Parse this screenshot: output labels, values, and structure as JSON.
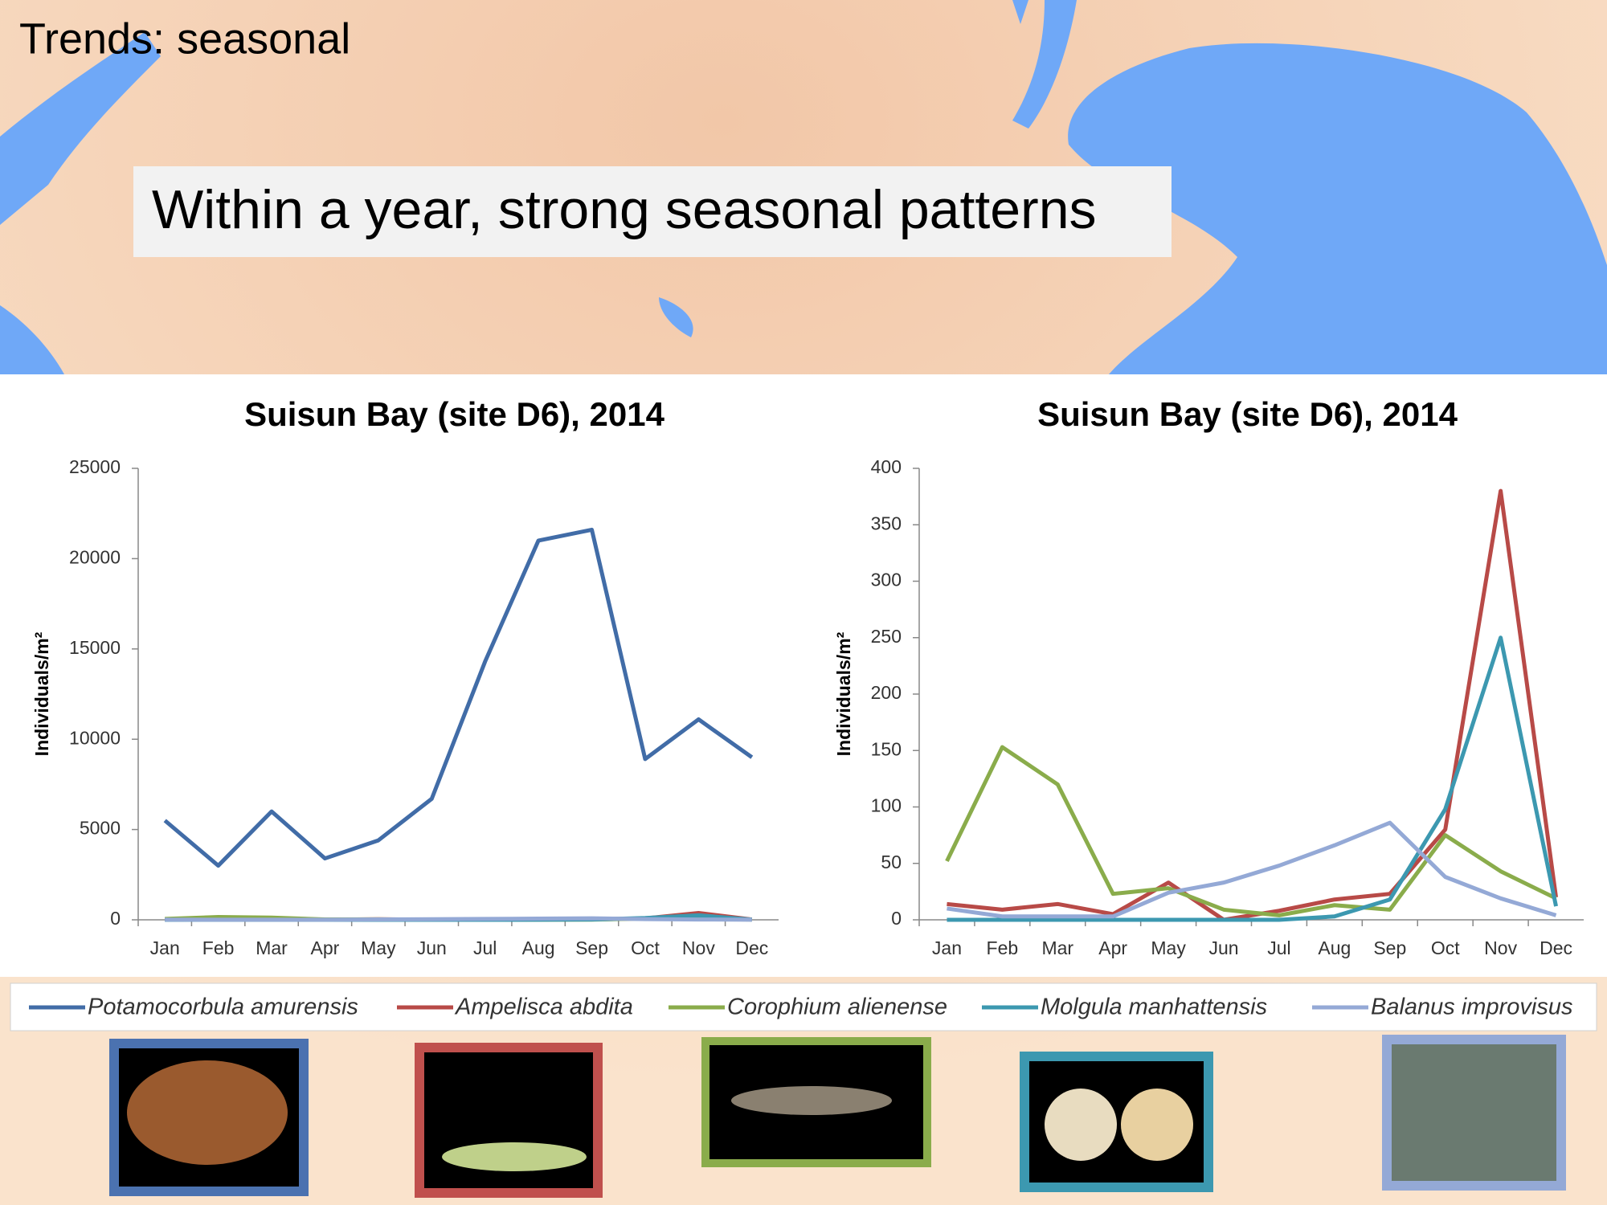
{
  "slide_title": "Trends: seasonal",
  "headline": "Within a year, strong seasonal patterns",
  "chart_data": [
    {
      "type": "line",
      "title": "Suisun Bay (site D6), 2014",
      "y_label": "Individuals/m²",
      "categories": [
        "Jan",
        "Feb",
        "Mar",
        "Apr",
        "May",
        "Jun",
        "Jul",
        "Aug",
        "Sep",
        "Oct",
        "Nov",
        "Dec"
      ],
      "ylim": [
        0,
        25000
      ],
      "yticks": [
        0,
        5000,
        10000,
        15000,
        20000,
        25000
      ],
      "series": [
        {
          "name": "Potamocorbula amurensis",
          "color": "#416ca7",
          "values": [
            5500,
            3000,
            6000,
            3400,
            4400,
            6700,
            14300,
            21000,
            21600,
            8900,
            11100,
            9000
          ]
        },
        {
          "name": "Ampelisca abdita",
          "color": "#b84a47",
          "values": [
            14,
            9,
            14,
            5,
            33,
            0,
            8,
            18,
            23,
            80,
            380,
            20
          ]
        },
        {
          "name": "Corophium alienense",
          "color": "#8aac4b",
          "values": [
            52,
            153,
            120,
            23,
            28,
            9,
            4,
            13,
            9,
            75,
            43,
            19
          ]
        },
        {
          "name": "Molgula manhattensis",
          "color": "#3c98b0",
          "values": [
            0,
            0,
            0,
            0,
            0,
            0,
            0,
            3,
            18,
            98,
            250,
            12
          ]
        },
        {
          "name": "Balanus improvisus",
          "color": "#94a9d6",
          "values": [
            10,
            3,
            3,
            3,
            24,
            33,
            48,
            66,
            86,
            38,
            19,
            4
          ]
        }
      ]
    },
    {
      "type": "line",
      "title": "Suisun Bay (site D6), 2014",
      "y_label": "Individuals/m²",
      "categories": [
        "Jan",
        "Feb",
        "Mar",
        "Apr",
        "May",
        "Jun",
        "Jul",
        "Aug",
        "Sep",
        "Oct",
        "Nov",
        "Dec"
      ],
      "ylim": [
        0,
        400
      ],
      "yticks": [
        0,
        50,
        100,
        150,
        200,
        250,
        300,
        350,
        400
      ],
      "series": [
        {
          "name": "Ampelisca abdita",
          "color": "#b84a47",
          "values": [
            14,
            9,
            14,
            5,
            33,
            0,
            8,
            18,
            23,
            80,
            380,
            20
          ]
        },
        {
          "name": "Corophium alienense",
          "color": "#8aac4b",
          "values": [
            52,
            153,
            120,
            23,
            28,
            9,
            4,
            13,
            9,
            75,
            43,
            19
          ]
        },
        {
          "name": "Molgula manhattensis",
          "color": "#3c98b0",
          "values": [
            0,
            0,
            0,
            0,
            0,
            0,
            0,
            3,
            18,
            98,
            250,
            12
          ]
        },
        {
          "name": "Balanus improvisus",
          "color": "#94a9d6",
          "values": [
            10,
            3,
            3,
            3,
            24,
            33,
            48,
            66,
            86,
            38,
            19,
            4
          ]
        }
      ]
    }
  ]
}
